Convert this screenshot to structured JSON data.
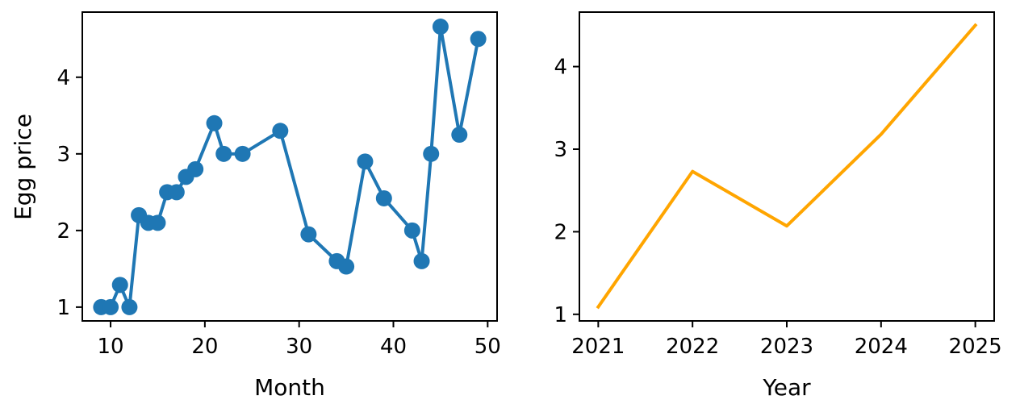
{
  "chart_data": [
    {
      "type": "line",
      "title": "",
      "xlabel": "Month",
      "ylabel": "Egg price",
      "xlim": [
        7.0,
        51.0
      ],
      "ylim": [
        0.82,
        4.85
      ],
      "xticks": [
        10,
        20,
        30,
        40,
        50
      ],
      "yticks": [
        1,
        2,
        3,
        4
      ],
      "grid": false,
      "markers": true,
      "series": [
        {
          "color": "#1f77b4",
          "x": [
            9,
            10,
            11,
            12,
            13,
            14,
            15,
            16,
            17,
            18,
            19,
            21,
            22,
            24,
            28,
            31,
            34,
            35,
            37,
            39,
            42,
            43,
            44,
            45,
            47,
            49
          ],
          "y": [
            1.0,
            1.0,
            1.29,
            1.0,
            2.2,
            2.1,
            2.1,
            2.5,
            2.5,
            2.7,
            2.8,
            3.4,
            3.0,
            3.0,
            3.3,
            1.95,
            1.6,
            1.53,
            2.9,
            2.42,
            2.0,
            1.6,
            3.0,
            4.66,
            3.25,
            4.5
          ]
        }
      ]
    },
    {
      "type": "line",
      "title": "",
      "xlabel": "Year",
      "ylabel": "",
      "xlim": [
        2020.8,
        2025.2
      ],
      "ylim": [
        0.92,
        4.66
      ],
      "xticks": [
        2021,
        2022,
        2023,
        2024,
        2025
      ],
      "yticks": [
        1,
        2,
        3,
        4
      ],
      "grid": false,
      "markers": false,
      "series": [
        {
          "color": "#ffa500",
          "x": [
            2021,
            2022,
            2023,
            2024,
            2025
          ],
          "y": [
            1.09,
            2.73,
            2.07,
            3.18,
            4.5
          ]
        }
      ]
    }
  ]
}
